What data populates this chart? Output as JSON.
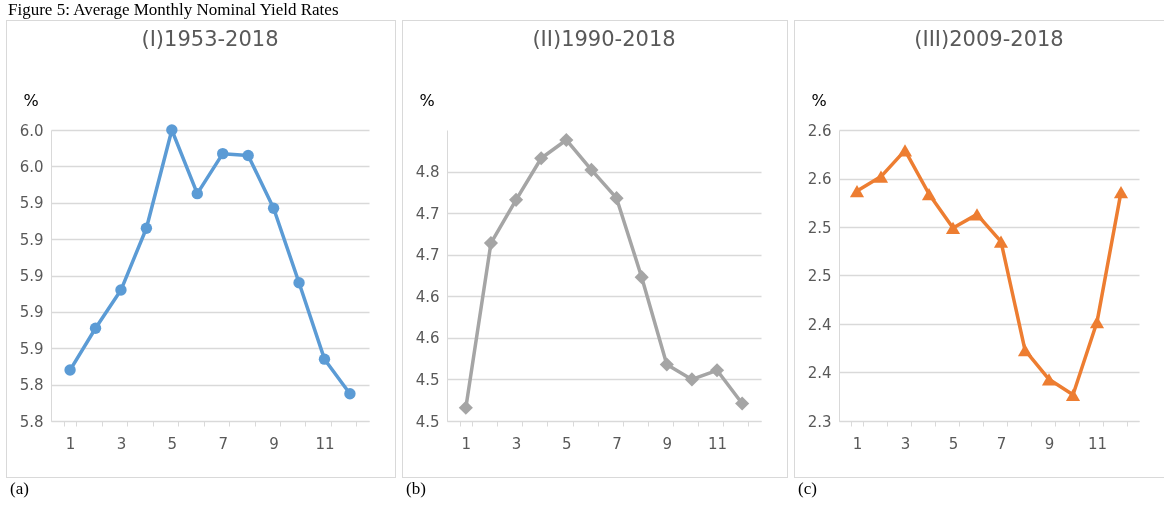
{
  "chart_data": [
    {
      "type": "line",
      "title": "(I)1953-2018",
      "ylabel": "%",
      "annotations": [
        "Figure 5: Average Monthly Nominal Yield Rates",
        "(a)"
      ],
      "categories": [
        "1",
        null,
        "3",
        null,
        "5",
        null,
        "7",
        null,
        "9",
        null,
        "11",
        null
      ],
      "series": [
        {
          "color": "#5b9bd5",
          "values": [
            5.848,
            5.871,
            5.892,
            5.926,
            5.98,
            5.945,
            5.967,
            5.966,
            5.937,
            5.896,
            5.854,
            5.835
          ]
        }
      ],
      "ylim": [
        5.82,
        5.98
      ],
      "yticks": [
        {
          "value": 5.82,
          "label": "5.8"
        },
        {
          "value": 5.84,
          "label": "5.8"
        },
        {
          "value": 5.86,
          "label": "5.9"
        },
        {
          "value": 5.88,
          "label": "5.9"
        },
        {
          "value": 5.9,
          "label": "5.9"
        },
        {
          "value": 5.92,
          "label": "5.9"
        },
        {
          "value": 5.94,
          "label": "5.9"
        },
        {
          "value": 5.96,
          "label": "6.0"
        },
        {
          "value": 5.98,
          "label": "6.0"
        }
      ],
      "grid": "y",
      "marker": "circle"
    },
    {
      "type": "line",
      "title": "(II)1990-2018",
      "ylabel": "%",
      "annotations": [
        "(b)"
      ],
      "categories": [
        "1",
        null,
        "3",
        null,
        "5",
        null,
        "7",
        null,
        "9",
        null,
        "11",
        null
      ],
      "series": [
        {
          "color": "#a5a5a5",
          "values": [
            4.466,
            4.664,
            4.716,
            4.766,
            4.788,
            4.752,
            4.718,
            4.623,
            4.518,
            4.5,
            4.511,
            4.471
          ]
        }
      ],
      "ylim": [
        4.45,
        4.8
      ],
      "yticks": [
        {
          "value": 4.45,
          "label": "4.5"
        },
        {
          "value": 4.5,
          "label": "4.5"
        },
        {
          "value": 4.55,
          "label": "4.6"
        },
        {
          "value": 4.6,
          "label": "4.6"
        },
        {
          "value": 4.65,
          "label": "4.7"
        },
        {
          "value": 4.7,
          "label": "4.7"
        },
        {
          "value": 4.75,
          "label": "4.8"
        }
      ],
      "grid": "y",
      "marker": "diamond"
    },
    {
      "type": "line",
      "title": "(III)2009-2018",
      "ylabel": "%",
      "annotations": [
        "(c)"
      ],
      "categories": [
        "1",
        null,
        "3",
        null,
        "5",
        null,
        "7",
        null,
        "9",
        null,
        "11",
        null
      ],
      "series": [
        {
          "color": "#ed7d31",
          "values": [
            2.537,
            2.552,
            2.579,
            2.534,
            2.499,
            2.513,
            2.485,
            2.373,
            2.343,
            2.327,
            2.402,
            2.536
          ]
        }
      ],
      "ylim": [
        2.3,
        2.6
      ],
      "yticks": [
        {
          "value": 2.3,
          "label": "2.3"
        },
        {
          "value": 2.35,
          "label": "2.4"
        },
        {
          "value": 2.4,
          "label": "2.4"
        },
        {
          "value": 2.45,
          "label": "2.5"
        },
        {
          "value": 2.5,
          "label": "2.5"
        },
        {
          "value": 2.55,
          "label": "2.6"
        },
        {
          "value": 2.6,
          "label": "2.6"
        }
      ],
      "grid": "y",
      "marker": "triangle"
    }
  ]
}
